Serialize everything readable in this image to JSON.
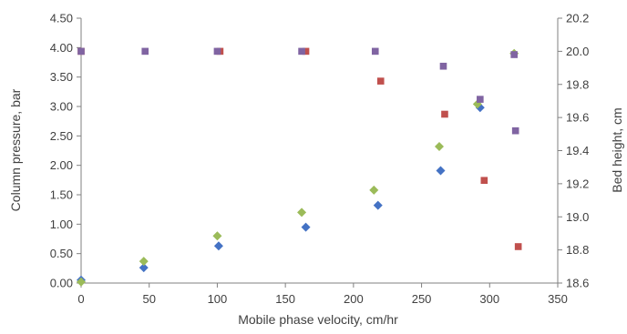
{
  "chart_data": {
    "type": "scatter",
    "xlabel": "Mobile phase velocity, cm/hr",
    "ylabel_left": "Column pressure, bar",
    "ylabel_right": "Bed height, cm",
    "xlim": [
      0,
      350
    ],
    "ylim_left": [
      0,
      4.5
    ],
    "ylim_right": [
      18.6,
      20.2
    ],
    "x_ticks": [
      "0",
      "50",
      "100",
      "150",
      "200",
      "250",
      "300",
      "350"
    ],
    "y_left_ticks": [
      "0.00",
      "0.50",
      "1.00",
      "1.50",
      "2.00",
      "2.50",
      "3.00",
      "3.50",
      "4.00",
      "4.50"
    ],
    "y_right_ticks": [
      "18.6",
      "18.8",
      "19.0",
      "19.2",
      "19.4",
      "19.6",
      "19.8",
      "20.0",
      "20.2"
    ],
    "grid": false,
    "legend": "none",
    "series": [
      {
        "color": "#4472C4",
        "marker": "diamond",
        "axis": "left",
        "points": [
          [
            0,
            0.05
          ],
          [
            46,
            0.26
          ],
          [
            101,
            0.63
          ],
          [
            165,
            0.95
          ],
          [
            218,
            1.32
          ],
          [
            264,
            1.91
          ],
          [
            293,
            2.98
          ]
        ]
      },
      {
        "color": "#9BBB59",
        "marker": "diamond",
        "axis": "left",
        "points": [
          [
            0,
            0.02
          ],
          [
            46,
            0.37
          ],
          [
            100,
            0.8
          ],
          [
            162,
            1.2
          ],
          [
            215,
            1.58
          ],
          [
            263,
            2.32
          ],
          [
            291,
            3.04
          ],
          [
            318,
            3.9
          ]
        ]
      },
      {
        "color": "#C0504D",
        "marker": "square",
        "axis": "right",
        "points": [
          [
            0,
            20.0
          ],
          [
            102,
            20.0
          ],
          [
            165,
            20.0
          ],
          [
            220,
            19.82
          ],
          [
            267,
            19.62
          ],
          [
            296,
            19.22
          ],
          [
            321,
            18.82
          ]
        ]
      },
      {
        "color": "#8064A2",
        "marker": "square",
        "axis": "right",
        "points": [
          [
            0,
            20.0
          ],
          [
            47,
            20.0
          ],
          [
            100,
            20.0
          ],
          [
            162,
            20.0
          ],
          [
            216,
            20.0
          ],
          [
            266,
            19.91
          ],
          [
            293,
            19.71
          ],
          [
            319,
            19.52
          ],
          [
            318,
            19.98
          ]
        ]
      }
    ]
  }
}
